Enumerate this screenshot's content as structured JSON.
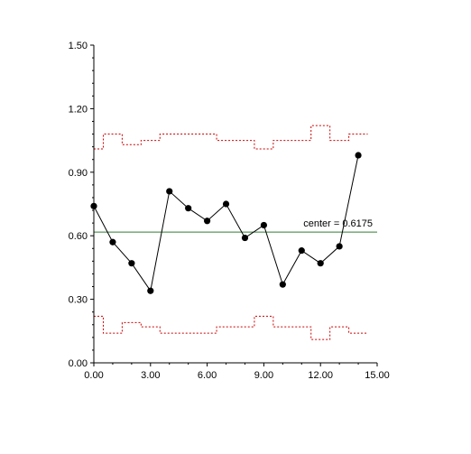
{
  "chart_data": {
    "type": "line",
    "title": "",
    "xlabel": "",
    "ylabel": "",
    "xlim": [
      0,
      15
    ],
    "ylim": [
      0,
      1.5
    ],
    "x_ticks": [
      "0.00",
      "3.00",
      "6.00",
      "9.00",
      "12.00",
      "15.00"
    ],
    "y_ticks": [
      "0.00",
      "0.30",
      "0.60",
      "0.90",
      "1.20",
      "1.50"
    ],
    "grid": false,
    "legend": "none",
    "series": [
      {
        "x": [
          0,
          1,
          2,
          3,
          4,
          5,
          6,
          7,
          8,
          9,
          10,
          11,
          12,
          13,
          14
        ],
        "values": [
          0.74,
          0.57,
          0.47,
          0.34,
          0.81,
          0.73,
          0.67,
          0.75,
          0.59,
          0.65,
          0.37,
          0.53,
          0.47,
          0.55,
          0.98
        ],
        "color": "#000000"
      }
    ],
    "center_line": {
      "value": 0.6175,
      "label": "center = 0.6175",
      "color": "#2e7d32"
    },
    "control_limits": {
      "color": "#cc0000",
      "upper": [
        1.01,
        1.08,
        1.03,
        1.05,
        1.08,
        1.08,
        1.08,
        1.05,
        1.05,
        1.01,
        1.05,
        1.05,
        1.12,
        1.05,
        1.08
      ],
      "lower": [
        0.22,
        0.14,
        0.19,
        0.17,
        0.14,
        0.14,
        0.14,
        0.17,
        0.17,
        0.22,
        0.17,
        0.17,
        0.11,
        0.17,
        0.14
      ]
    }
  }
}
